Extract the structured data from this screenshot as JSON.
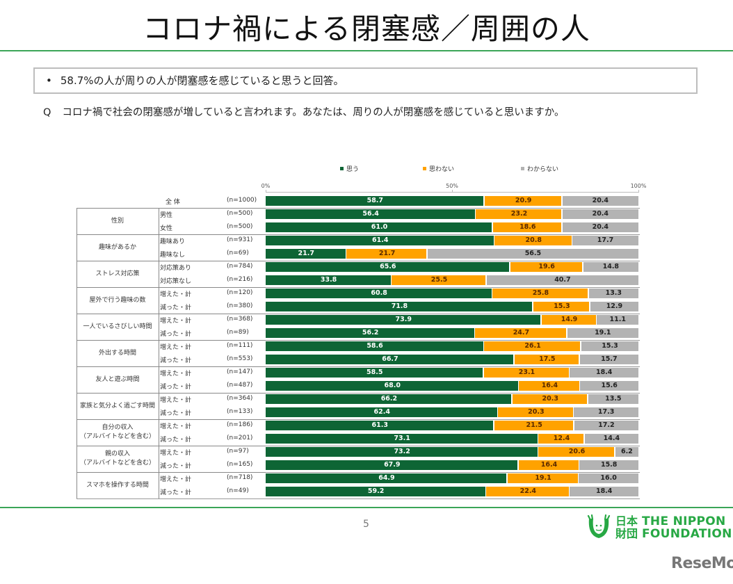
{
  "header": {
    "title": "コロナ禍による閉塞感／周囲の人"
  },
  "summary": {
    "bullet": "•",
    "text": "58.7%の人が周りの人が閉塞感を感じていると思うと回答。"
  },
  "question": {
    "prefix": "Q",
    "text": "コロナ禍で社会の閉塞感が増していると言われます。あなたは、周りの人が閉塞感を感じていると思いますか。"
  },
  "footer": {
    "page_number": "5",
    "logo_kanji_top": "日本",
    "logo_kanji_bottom": "財団",
    "logo_en_top": "THE NIPPON",
    "logo_en_bottom": "FOUNDATION",
    "watermark": "ReseMom"
  },
  "colors": {
    "think": "#0e6535",
    "not_think": "#ffa200",
    "unknown": "#b3b3b3",
    "accent_line": "#3aa557",
    "logo_green": "#27a844"
  },
  "chart_data": {
    "type": "bar",
    "orientation": "horizontal",
    "stacked": true,
    "normalized": true,
    "title": "",
    "xlabel": "",
    "ylabel": "",
    "xlim": [
      0,
      100
    ],
    "x_ticks": [
      "0%",
      "50%",
      "100%"
    ],
    "legend": {
      "position": "top",
      "entries": [
        "思う",
        "思わない",
        "わからない"
      ]
    },
    "series_names": [
      "思う",
      "思わない",
      "わからない"
    ],
    "groups": [
      {
        "label": "",
        "rows": [
          {
            "label": "全 体",
            "n": "(n=1000)",
            "values": [
              58.7,
              20.9,
              20.4
            ]
          }
        ]
      },
      {
        "label": "性別",
        "rows": [
          {
            "label": "男性",
            "n": "(n=500)",
            "values": [
              56.4,
              23.2,
              20.4
            ]
          },
          {
            "label": "女性",
            "n": "(n=500)",
            "values": [
              61.0,
              18.6,
              20.4
            ]
          }
        ]
      },
      {
        "label": "趣味があるか",
        "rows": [
          {
            "label": "趣味あり",
            "n": "(n=931)",
            "values": [
              61.4,
              20.8,
              17.7
            ]
          },
          {
            "label": "趣味なし",
            "n": "(n=69)",
            "values": [
              21.7,
              21.7,
              56.5
            ]
          }
        ]
      },
      {
        "label": "ストレス対応策",
        "rows": [
          {
            "label": "対応策あり",
            "n": "(n=784)",
            "values": [
              65.6,
              19.6,
              14.8
            ]
          },
          {
            "label": "対応策なし",
            "n": "(n=216)",
            "values": [
              33.8,
              25.5,
              40.7
            ]
          }
        ]
      },
      {
        "label": "屋外で行う趣味の数",
        "rows": [
          {
            "label": "増えた・計",
            "n": "(n=120)",
            "values": [
              60.8,
              25.8,
              13.3
            ]
          },
          {
            "label": "減った・計",
            "n": "(n=380)",
            "values": [
              71.8,
              15.3,
              12.9
            ]
          }
        ]
      },
      {
        "label": "一人でいるさびしい時間",
        "rows": [
          {
            "label": "増えた・計",
            "n": "(n=368)",
            "values": [
              73.9,
              14.9,
              11.1
            ]
          },
          {
            "label": "減った・計",
            "n": "(n=89)",
            "values": [
              56.2,
              24.7,
              19.1
            ]
          }
        ]
      },
      {
        "label": "外出する時間",
        "rows": [
          {
            "label": "増えた・計",
            "n": "(n=111)",
            "values": [
              58.6,
              26.1,
              15.3
            ]
          },
          {
            "label": "減った・計",
            "n": "(n=553)",
            "values": [
              66.7,
              17.5,
              15.7
            ]
          }
        ]
      },
      {
        "label": "友人と遊ぶ時間",
        "rows": [
          {
            "label": "増えた・計",
            "n": "(n=147)",
            "values": [
              58.5,
              23.1,
              18.4
            ]
          },
          {
            "label": "減った・計",
            "n": "(n=487)",
            "values": [
              68.0,
              16.4,
              15.6
            ]
          }
        ]
      },
      {
        "label": "家族と気分よく過ごす時間",
        "rows": [
          {
            "label": "増えた・計",
            "n": "(n=364)",
            "values": [
              66.2,
              20.3,
              13.5
            ]
          },
          {
            "label": "減った・計",
            "n": "(n=133)",
            "values": [
              62.4,
              20.3,
              17.3
            ]
          }
        ]
      },
      {
        "label": "自分の収入\n（アルバイトなどを含む）",
        "rows": [
          {
            "label": "増えた・計",
            "n": "(n=186)",
            "values": [
              61.3,
              21.5,
              17.2
            ]
          },
          {
            "label": "減った・計",
            "n": "(n=201)",
            "values": [
              73.1,
              12.4,
              14.4
            ]
          }
        ]
      },
      {
        "label": "親の収入\n（アルバイトなどを含む）",
        "rows": [
          {
            "label": "増えた・計",
            "n": "(n=97)",
            "values": [
              73.2,
              20.6,
              6.2
            ]
          },
          {
            "label": "減った・計",
            "n": "(n=165)",
            "values": [
              67.9,
              16.4,
              15.8
            ]
          }
        ]
      },
      {
        "label": "スマホを操作する時間",
        "rows": [
          {
            "label": "増えた・計",
            "n": "(n=718)",
            "values": [
              64.9,
              19.1,
              16.0
            ]
          },
          {
            "label": "減った・計",
            "n": "(n=49)",
            "values": [
              59.2,
              22.4,
              18.4
            ]
          }
        ]
      }
    ]
  }
}
